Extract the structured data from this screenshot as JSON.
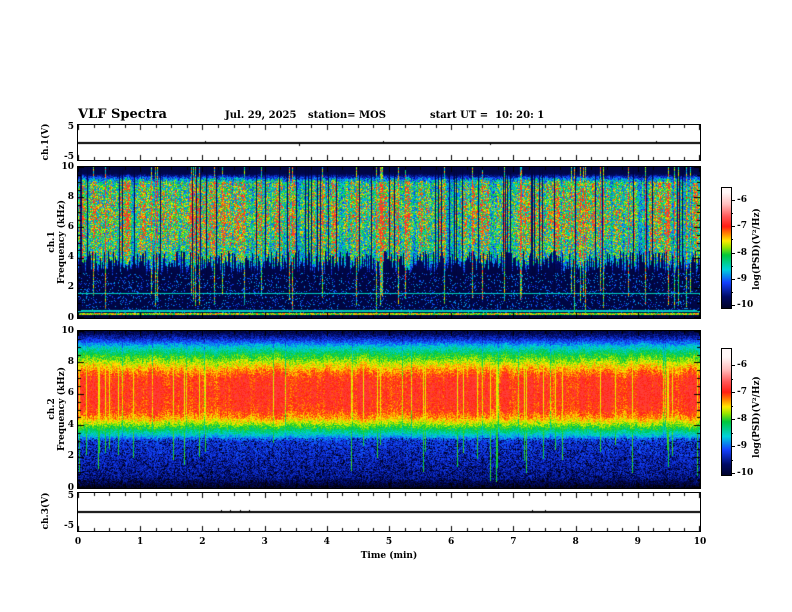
{
  "header": {
    "title": "VLF Spectra",
    "date": "Jul. 29, 2025",
    "station": "station= MOS",
    "start_ut": "start UT =  10: 20: 1"
  },
  "x_axis": {
    "label": "Time (min)",
    "min": 0,
    "max": 10,
    "major_tick_labels": [
      "0",
      "1",
      "2",
      "3",
      "4",
      "5",
      "6",
      "7",
      "8",
      "9",
      "10"
    ],
    "minor_step_min": 0.25
  },
  "colormap": [
    {
      "v": -10.3,
      "c": "#000010"
    },
    {
      "v": -9.7,
      "c": "#000a64"
    },
    {
      "v": -9.15,
      "c": "#1440ff"
    },
    {
      "v": -8.65,
      "c": "#00d2dc"
    },
    {
      "v": -8.1,
      "c": "#00c83c"
    },
    {
      "v": -7.8,
      "c": "#96e600"
    },
    {
      "v": -7.55,
      "c": "#ffeb00"
    },
    {
      "v": -7.3,
      "c": "#ff8c00"
    },
    {
      "v": -7.0,
      "c": "#ff1e14"
    },
    {
      "v": -6.6,
      "c": "#ff5a5a"
    },
    {
      "v": -6.15,
      "c": "#ffbebe"
    },
    {
      "v": -5.7,
      "c": "#fff7f7"
    }
  ],
  "chart_data": [
    {
      "type": "line",
      "name": "ch1-voltage-waveform",
      "ylabel": "ch.1(V)",
      "ylim": [
        -5,
        5
      ],
      "ytick_labels": [
        "5",
        "-5"
      ],
      "signal": "flat line near 0 V across 0-10 min with sparse tiny spikes",
      "blips": [
        {
          "t": 2.04,
          "a": 2
        },
        {
          "t": 3.55,
          "a": -3
        },
        {
          "t": 4.9,
          "a": 2
        },
        {
          "t": 6.62,
          "a": -2
        },
        {
          "t": 9.3,
          "a": 2
        }
      ]
    },
    {
      "type": "heatmap",
      "name": "ch1-spectrogram",
      "ylabel_lines": [
        "ch.1",
        "Frequency (kHz)"
      ],
      "ylim_khz": [
        0,
        10
      ],
      "ytick_labels": [
        "10",
        "8",
        "6",
        "4",
        "2",
        "0"
      ],
      "colorbar": {
        "label": "log(PSD)(V²/Hz)",
        "tick_labels": [
          "-6",
          "-7",
          "-8",
          "-9",
          "-10"
        ],
        "range": [
          -6,
          -10
        ]
      },
      "texture": {
        "seed": 7,
        "kind": "streaky-green",
        "summary": "dense vertical green/cyan streaks 4-9.3 kHz with black gap columns, mostly black below 3 kHz and above 9.5 kHz, sparse red speckles, narrow cyan horizontal lines",
        "envelope": [
          [
            0,
            0.0
          ],
          [
            0.25,
            0.02
          ],
          [
            0.32,
            0.2
          ],
          [
            3.0,
            0.2
          ],
          [
            4.0,
            0.72
          ],
          [
            5.5,
            0.85
          ],
          [
            6.8,
            0.92
          ],
          [
            9.0,
            0.78
          ],
          [
            9.4,
            0.25
          ],
          [
            9.6,
            0.05
          ],
          [
            10,
            0.02
          ]
        ],
        "hlines_khz": [
          1.65,
          0.5,
          0.3
        ],
        "gap_prob": 0.1,
        "strong_prob": 0.07
      }
    },
    {
      "type": "heatmap",
      "name": "ch2-spectrogram",
      "ylabel_lines": [
        "ch.2",
        "Frequency (kHz)"
      ],
      "ylim_khz": [
        0,
        10
      ],
      "ytick_labels": [
        "10",
        "8",
        "6",
        "4",
        "2",
        "0"
      ],
      "colorbar": {
        "label": "log(PSD)(V²/Hz)",
        "tick_labels": [
          "-6",
          "-7",
          "-8",
          "-9",
          "-10"
        ],
        "range": [
          -6,
          -10
        ]
      },
      "texture": {
        "seed": 13,
        "kind": "banded-red-core",
        "summary": "continuous red/orange core 4.5-7.5 kHz ringed by yellow then green then cyan, blue speckle 0.3-3 kHz and 9-10 kHz, black at extremes, narrow green vertical streaks",
        "profile": [
          [
            0,
            -10.3
          ],
          [
            0.25,
            -9.9
          ],
          [
            0.7,
            -9.55
          ],
          [
            3.0,
            -9.25
          ],
          [
            3.5,
            -8.55
          ],
          [
            4.0,
            -7.95
          ],
          [
            4.5,
            -7.4
          ],
          [
            5.0,
            -7.1
          ],
          [
            6.0,
            -6.98
          ],
          [
            7.0,
            -7.05
          ],
          [
            7.5,
            -7.35
          ],
          [
            8.0,
            -7.75
          ],
          [
            8.5,
            -8.15
          ],
          [
            9.0,
            -8.65
          ],
          [
            9.5,
            -9.35
          ],
          [
            10,
            -9.95
          ]
        ],
        "streak_prob": 0.055
      }
    },
    {
      "type": "line",
      "name": "ch3-voltage-waveform",
      "ylabel": "ch.3(V)",
      "ylim": [
        -5,
        5
      ],
      "ytick_labels": [
        "5",
        "-5"
      ],
      "signal": "flat line near 0 V across 0-10 min with tiny spikes near 2.3-2.8 min",
      "blips": [
        {
          "t": 2.3,
          "a": 2
        },
        {
          "t": 2.45,
          "a": 2
        },
        {
          "t": 2.6,
          "a": 2
        },
        {
          "t": 2.75,
          "a": 2
        },
        {
          "t": 7.3,
          "a": 2
        },
        {
          "t": 7.5,
          "a": 2
        }
      ]
    }
  ]
}
